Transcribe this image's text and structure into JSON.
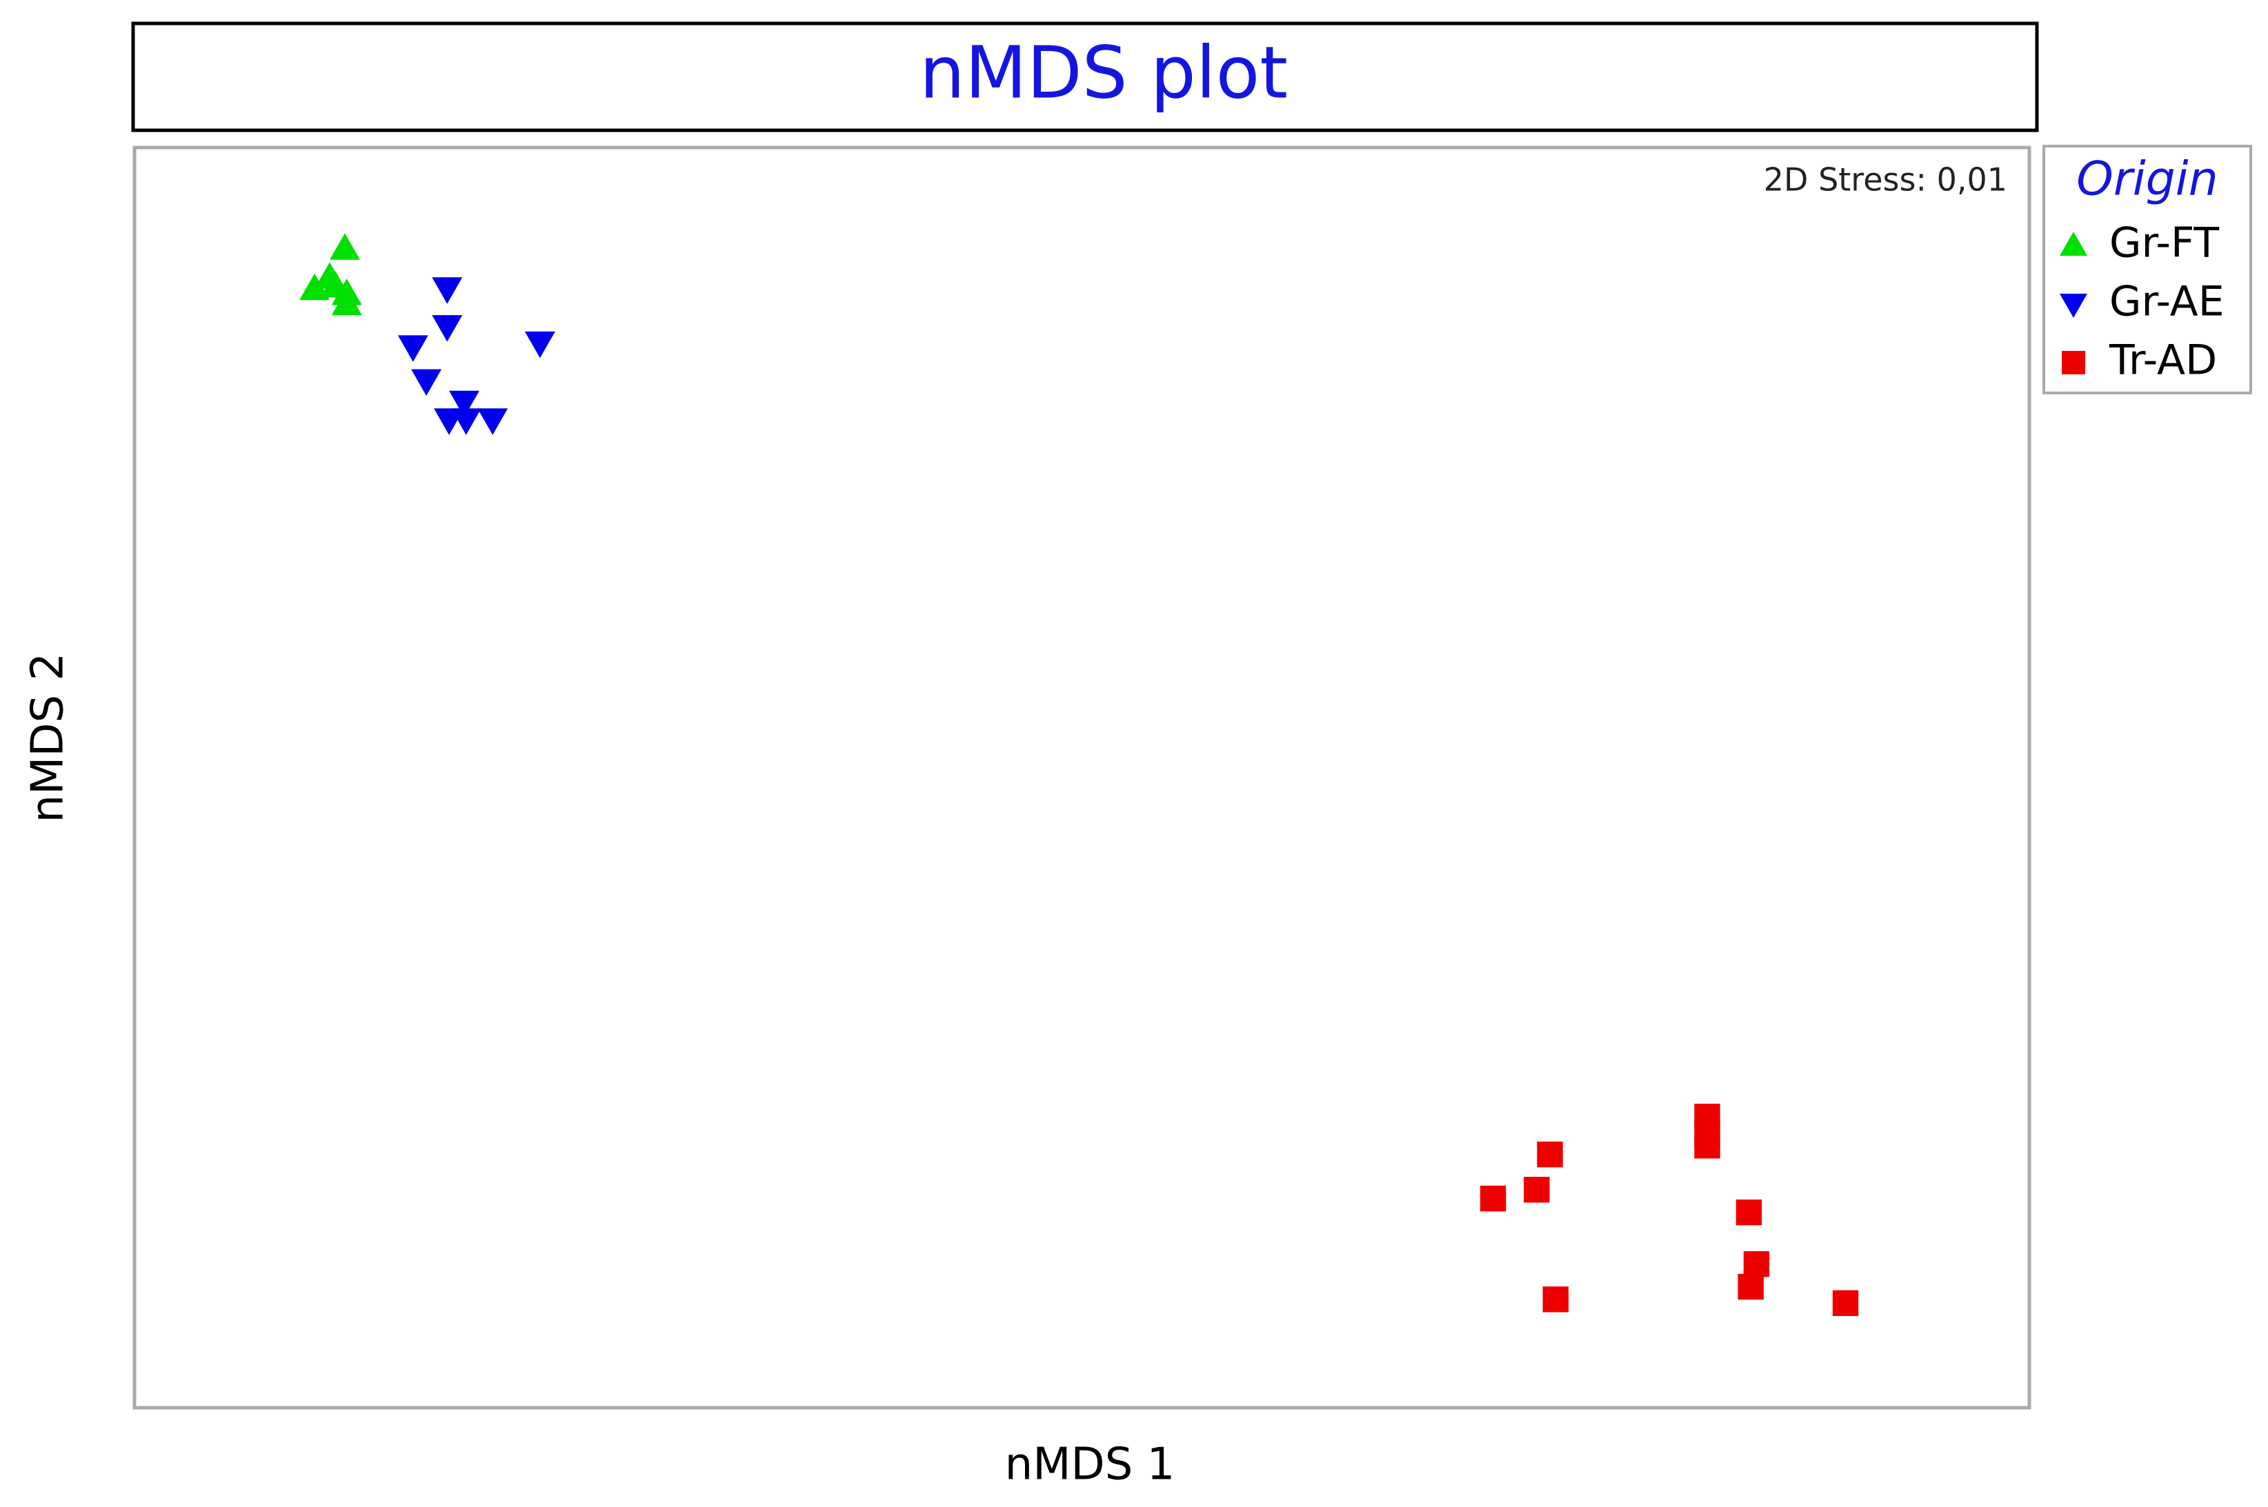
{
  "chart_data": {
    "type": "scatter",
    "title": "nMDS plot",
    "xlabel": "nMDS 1",
    "ylabel": "nMDS 2",
    "annotation": "2D Stress: 0,01",
    "legend_title": "Origin",
    "legend": "outside-right",
    "xlim": [
      0,
      100
    ],
    "ylim": [
      0,
      100
    ],
    "series": [
      {
        "name": "Gr-FT",
        "color": "#00e000",
        "marker": "triangle-up",
        "x": [
          9.5,
          11.1,
          10.3,
          11.2,
          10.6,
          11.2
        ],
        "values": [
          88.8,
          92.0,
          89.7,
          88.4,
          89.0,
          87.6
        ]
      },
      {
        "name": "Gr-AE",
        "color": "#0000ee",
        "marker": "triangle-down",
        "x": [
          16.5,
          16.5,
          14.7,
          21.4,
          15.4,
          17.4,
          16.6,
          17.5,
          18.9
        ],
        "values": [
          88.8,
          85.8,
          84.2,
          84.5,
          81.5,
          79.8,
          78.4,
          78.4,
          78.4
        ]
      },
      {
        "name": "Tr-AD",
        "color": "#ee0000",
        "marker": "square",
        "x": [
          83.0,
          83.0,
          83.0,
          74.7,
          71.7,
          74.0,
          85.2,
          85.6,
          85.3,
          75.0,
          90.3
        ],
        "values": [
          23.1,
          21.7,
          20.8,
          20.1,
          16.6,
          17.3,
          15.5,
          11.4,
          9.6,
          8.6,
          8.3
        ]
      }
    ]
  }
}
